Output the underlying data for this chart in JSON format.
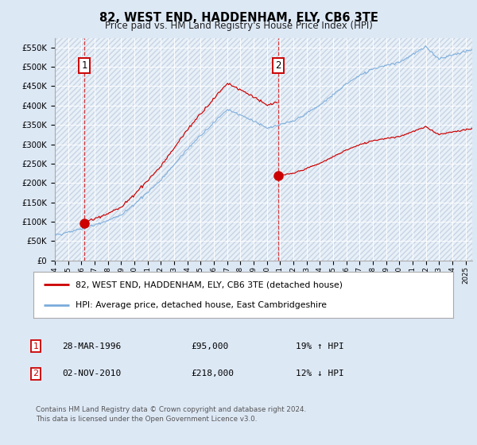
{
  "title": "82, WEST END, HADDENHAM, ELY, CB6 3TE",
  "subtitle": "Price paid vs. HM Land Registry's House Price Index (HPI)",
  "legend_line1": "82, WEST END, HADDENHAM, ELY, CB6 3TE (detached house)",
  "legend_line2": "HPI: Average price, detached house, East Cambridgeshire",
  "sale1_date": "28-MAR-1996",
  "sale1_price": 95000,
  "sale1_hpi": "19% ↑ HPI",
  "sale2_date": "02-NOV-2010",
  "sale2_price": 218000,
  "sale2_hpi": "12% ↓ HPI",
  "footer": "Contains HM Land Registry data © Crown copyright and database right 2024.\nThis data is licensed under the Open Government Licence v3.0.",
  "sale_color": "#cc0000",
  "hpi_color": "#7aabdb",
  "sale1_x": 1996.23,
  "sale2_x": 2010.84,
  "ylim": [
    0,
    575000
  ],
  "xlim_start": 1994.0,
  "xlim_end": 2025.5,
  "bg_color": "#dde8f5",
  "plot_bg": "#e8f0f8",
  "hatch_color": "#c8d4e4",
  "grid_color": "#ffffff"
}
